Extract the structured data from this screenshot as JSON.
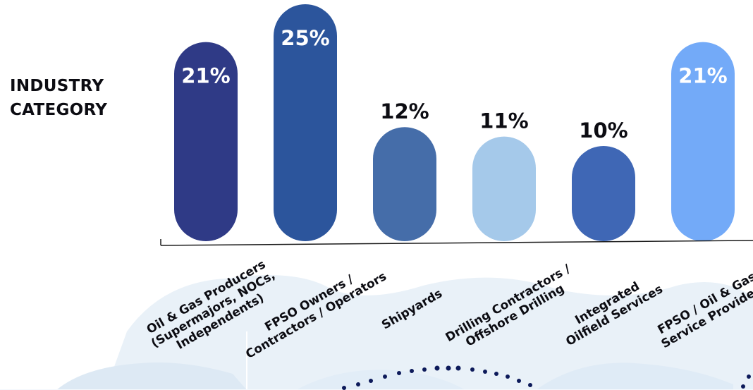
{
  "chart_data": {
    "type": "bar",
    "title_lines": [
      "INDUSTRY",
      "CATEGORY"
    ],
    "categories": [
      [
        "Oil & Gas Producers",
        "(Supermajors, NOCs,",
        "Independents)"
      ],
      [
        "FPSO Owners /",
        "Contractors / Operators"
      ],
      [
        "Shipyards"
      ],
      [
        "Drilling Contractors /",
        "Offshore Drilling"
      ],
      [
        "Integrated",
        "Oilfield Services"
      ],
      [
        "FPSO / Oil & Gas",
        "Service Providers"
      ]
    ],
    "values": [
      21,
      25,
      12,
      11,
      10,
      21
    ],
    "value_labels": [
      "21%",
      "25%",
      "12%",
      "11%",
      "10%",
      "21%"
    ],
    "bar_colors": [
      "#2f3a86",
      "#2c559c",
      "#456da9",
      "#a5c9ea",
      "#3f67b5",
      "#73aaf8"
    ],
    "value_label_inside": [
      true,
      true,
      false,
      false,
      false,
      true
    ],
    "ylim": [
      0,
      25
    ]
  }
}
